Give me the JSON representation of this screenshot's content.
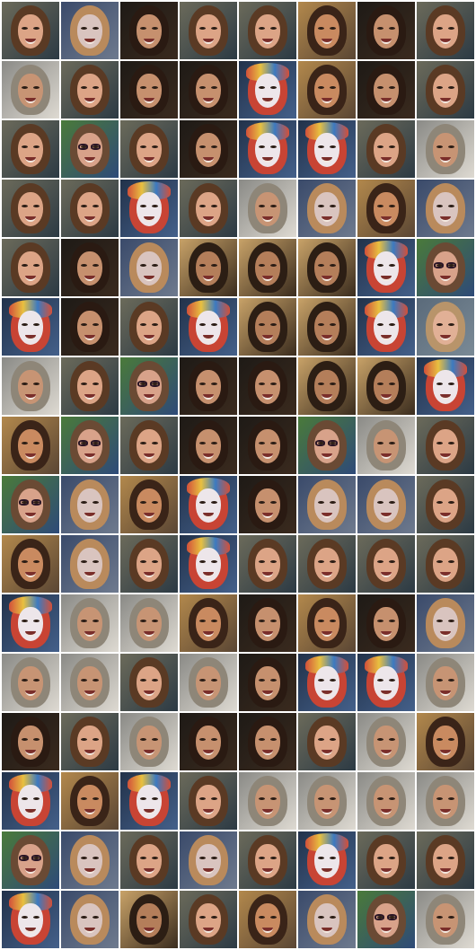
{
  "grid": {
    "rows": 16,
    "cols": 8,
    "background": "#ffffff"
  },
  "tile_kinds": {
    "brunette-woman": {
      "bg": [
        "#6b6a5a",
        "#2c3a44"
      ],
      "hair": "#5a3a24",
      "skin": "#dca486"
    },
    "masked-face": {
      "bg": [
        "#3a4a6a",
        "#6e7a8e"
      ],
      "hair": "#b98a5c",
      "skin": "#d9c4bf"
    },
    "man-dark-hair": {
      "bg": [
        "#1e1a16",
        "#3a2a1e"
      ],
      "hair": "#2a1a12",
      "skin": "#c6906e"
    },
    "tan-woman": {
      "bg": [
        "#b2884c",
        "#5a4634"
      ],
      "hair": "#3a2418",
      "skin": "#c98a60"
    },
    "gray-hair-person": {
      "bg": [
        "#8a8a86",
        "#dedad2"
      ],
      "hair": "#8e8678",
      "skin": "#c79474"
    },
    "pale-face-colorful-scarf": {
      "bg": [
        "#22324a",
        "#44608a"
      ],
      "hair": "#c84434",
      "skin": "#ede6ea"
    },
    "woman-glasses": {
      "bg": [
        "#4a7a3a",
        "#2e4a78"
      ],
      "hair": "#6a4a34",
      "skin": "#d8a28a"
    },
    "blonde-woman": {
      "bg": [
        "#5a6a7a",
        "#7a8a96"
      ],
      "hair": "#b8946a",
      "skin": "#e1b096"
    },
    "tan-man": {
      "bg": [
        "#c8a268",
        "#3a2c1e"
      ],
      "hair": "#2c1e14",
      "skin": "#b47e5a"
    }
  },
  "tiles": [
    [
      "brunette-woman",
      "masked-face",
      "man-dark-hair",
      "brunette-woman",
      "brunette-woman",
      "tan-woman",
      "man-dark-hair",
      "brunette-woman"
    ],
    [
      "gray-hair-person",
      "brunette-woman",
      "man-dark-hair",
      "man-dark-hair",
      "pale-face-colorful-scarf",
      "tan-woman",
      "man-dark-hair",
      "brunette-woman"
    ],
    [
      "brunette-woman",
      "woman-glasses",
      "brunette-woman",
      "man-dark-hair",
      "pale-face-colorful-scarf",
      "pale-face-colorful-scarf",
      "brunette-woman",
      "gray-hair-person"
    ],
    [
      "brunette-woman",
      "brunette-woman",
      "pale-face-colorful-scarf",
      "brunette-woman",
      "gray-hair-person",
      "masked-face",
      "tan-woman",
      "masked-face"
    ],
    [
      "brunette-woman",
      "man-dark-hair",
      "masked-face",
      "tan-man",
      "tan-man",
      "tan-man",
      "pale-face-colorful-scarf",
      "woman-glasses"
    ],
    [
      "pale-face-colorful-scarf",
      "man-dark-hair",
      "brunette-woman",
      "pale-face-colorful-scarf",
      "tan-man",
      "tan-man",
      "pale-face-colorful-scarf",
      "blonde-woman"
    ],
    [
      "gray-hair-person",
      "brunette-woman",
      "woman-glasses",
      "man-dark-hair",
      "man-dark-hair",
      "tan-man",
      "tan-man",
      "pale-face-colorful-scarf"
    ],
    [
      "tan-woman",
      "woman-glasses",
      "brunette-woman",
      "man-dark-hair",
      "man-dark-hair",
      "woman-glasses",
      "gray-hair-person",
      "brunette-woman"
    ],
    [
      "woman-glasses",
      "masked-face",
      "tan-woman",
      "pale-face-colorful-scarf",
      "man-dark-hair",
      "masked-face",
      "masked-face",
      "brunette-woman"
    ],
    [
      "tan-woman",
      "masked-face",
      "brunette-woman",
      "pale-face-colorful-scarf",
      "brunette-woman",
      "brunette-woman",
      "brunette-woman",
      "brunette-woman"
    ],
    [
      "pale-face-colorful-scarf",
      "gray-hair-person",
      "gray-hair-person",
      "tan-woman",
      "man-dark-hair",
      "tan-woman",
      "man-dark-hair",
      "masked-face"
    ],
    [
      "gray-hair-person",
      "gray-hair-person",
      "brunette-woman",
      "gray-hair-person",
      "man-dark-hair",
      "pale-face-colorful-scarf",
      "pale-face-colorful-scarf",
      "gray-hair-person"
    ],
    [
      "man-dark-hair",
      "brunette-woman",
      "gray-hair-person",
      "man-dark-hair",
      "man-dark-hair",
      "brunette-woman",
      "gray-hair-person",
      "tan-woman"
    ],
    [
      "pale-face-colorful-scarf",
      "tan-woman",
      "pale-face-colorful-scarf",
      "brunette-woman",
      "gray-hair-person",
      "gray-hair-person",
      "gray-hair-person",
      "gray-hair-person"
    ],
    [
      "woman-glasses",
      "masked-face",
      "brunette-woman",
      "masked-face",
      "brunette-woman",
      "pale-face-colorful-scarf",
      "brunette-woman",
      "brunette-woman"
    ],
    [
      "pale-face-colorful-scarf",
      "masked-face",
      "tan-man",
      "brunette-woman",
      "tan-woman",
      "masked-face",
      "woman-glasses",
      "gray-hair-person"
    ]
  ]
}
